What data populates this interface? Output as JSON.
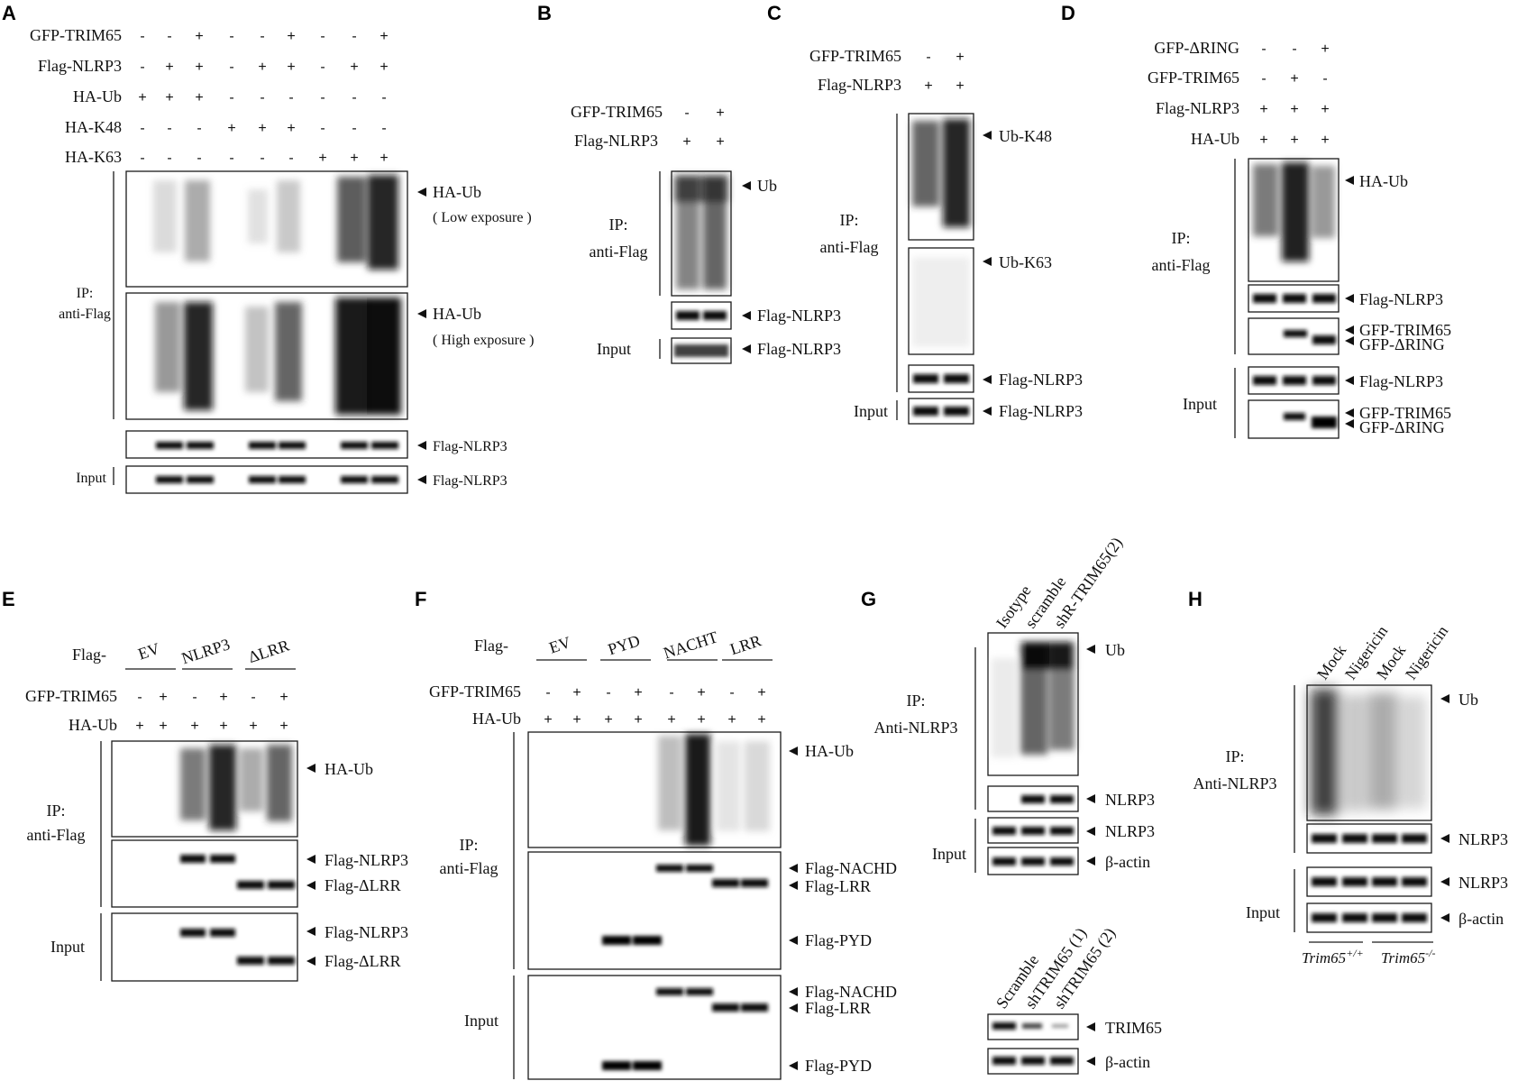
{
  "panel_letters": [
    "A",
    "B",
    "C",
    "D",
    "E",
    "F",
    "G",
    "H"
  ],
  "A": {
    "row_labels": [
      "GFP-TRIM65",
      "Flag-NLRP3",
      "HA-Ub",
      "HA-K48",
      "HA-K63"
    ],
    "rows": [
      [
        "-",
        "-",
        "+",
        "-",
        "-",
        "+",
        "-",
        "-",
        "+"
      ],
      [
        "-",
        "+",
        "+",
        "-",
        "+",
        "+",
        "-",
        "+",
        "+"
      ],
      [
        "+",
        "+",
        "+",
        "-",
        "-",
        "-",
        "-",
        "-",
        "-"
      ],
      [
        "-",
        "-",
        "-",
        "+",
        "+",
        "+",
        "-",
        "-",
        "-"
      ],
      [
        "-",
        "-",
        "-",
        "-",
        "-",
        "-",
        "+",
        "+",
        "+"
      ]
    ],
    "blots": [
      "HA-Ub",
      "( Low exposure )",
      "HA-Ub",
      "( High exposure )",
      "Flag-NLRP3",
      "Flag-NLRP3"
    ],
    "ip_label": [
      "IP:",
      "anti-Flag"
    ],
    "input_label": "Input"
  },
  "B": {
    "row_labels": [
      "GFP-TRIM65",
      "Flag-NLRP3"
    ],
    "rows": [
      [
        "-",
        "+"
      ],
      [
        "+",
        "+"
      ]
    ],
    "blots": [
      "Ub",
      "Flag-NLRP3",
      "Flag-NLRP3"
    ],
    "ip_label": [
      "IP:",
      "anti-Flag"
    ],
    "input_label": "Input"
  },
  "C": {
    "row_labels": [
      "GFP-TRIM65",
      "Flag-NLRP3"
    ],
    "rows": [
      [
        "-",
        "+"
      ],
      [
        "+",
        "+"
      ]
    ],
    "blots": [
      "Ub-K48",
      "Ub-K63",
      "Flag-NLRP3",
      "Flag-NLRP3"
    ],
    "ip_label": [
      "IP:",
      "anti-Flag"
    ],
    "input_label": "Input"
  },
  "D": {
    "row_labels": [
      "GFP-ΔRING",
      "GFP-TRIM65",
      "Flag-NLRP3",
      "HA-Ub"
    ],
    "rows": [
      [
        "-",
        "-",
        "+"
      ],
      [
        "-",
        "+",
        "-"
      ],
      [
        "+",
        "+",
        "+"
      ],
      [
        "+",
        "+",
        "+"
      ]
    ],
    "blots": [
      "HA-Ub",
      "Flag-NLRP3",
      "GFP-TRIM65",
      "GFP-ΔRING",
      "Flag-NLRP3",
      "GFP-TRIM65",
      "GFP-ΔRING"
    ],
    "ip_label": [
      "IP:",
      "anti-Flag"
    ],
    "input_label": "Input"
  },
  "E": {
    "flag_label": "Flag-",
    "groups": [
      "EV",
      "NLRP3",
      "ΔLRR"
    ],
    "row_labels": [
      "GFP-TRIM65",
      "HA-Ub"
    ],
    "rows": [
      [
        "-",
        "+",
        "-",
        "+",
        "-",
        "+"
      ],
      [
        "+",
        "+",
        "+",
        "+",
        "+",
        "+"
      ]
    ],
    "blots": [
      "HA-Ub",
      "Flag-NLRP3",
      "Flag-ΔLRR",
      "Flag-NLRP3",
      "Flag-ΔLRR"
    ],
    "ip_label": [
      "IP:",
      "anti-Flag"
    ],
    "input_label": "Input"
  },
  "F": {
    "flag_label": "Flag-",
    "groups": [
      "EV",
      "PYD",
      "NACHT",
      "LRR"
    ],
    "row_labels": [
      "GFP-TRIM65",
      "HA-Ub"
    ],
    "rows": [
      [
        "-",
        "+",
        "-",
        "+",
        "-",
        "+",
        "-",
        "+"
      ],
      [
        "+",
        "+",
        "+",
        "+",
        "+",
        "+",
        "+",
        "+"
      ]
    ],
    "blots": [
      "HA-Ub",
      "Flag-NACHD",
      "Flag-LRR",
      "Flag-PYD",
      "Flag-NACHD",
      "Flag-LRR",
      "Flag-PYD"
    ],
    "ip_label": [
      "IP:",
      "anti-Flag"
    ],
    "input_label": "Input"
  },
  "G": {
    "lanes": [
      "Isotype",
      "scramble",
      "shR-TRIM65(2)"
    ],
    "blots": [
      "Ub",
      "NLRP3",
      "NLRP3",
      "β-actin"
    ],
    "ip_label": [
      "IP:",
      "Anti-NLRP3"
    ],
    "input_label": "Input",
    "lanes2": [
      "Scramble",
      "shTRIM65 (1)",
      "shTRIM65 (2)"
    ],
    "blots2": [
      "TRIM65",
      "β-actin"
    ]
  },
  "H": {
    "lanes": [
      "Mock",
      "Nigericin",
      "Mock",
      "Nigericin"
    ],
    "blots": [
      "Ub",
      "NLRP3",
      "NLRP3",
      "β-actin"
    ],
    "ip_label": [
      "IP:",
      "Anti-NLRP3"
    ],
    "input_label": "Input",
    "genotypes": [
      "Trim65",
      "+/+",
      "Trim65",
      "-/-"
    ]
  }
}
